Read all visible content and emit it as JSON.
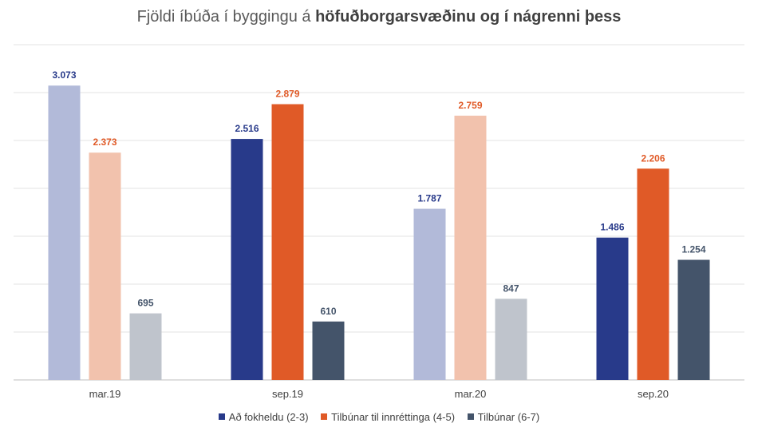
{
  "title": {
    "part1": "Fjöldi íbúða í byggingu á ",
    "part2": "höfuðborgarsvæðinu og í nágrenni þess"
  },
  "colors": {
    "series1": "#283a8a",
    "series2": "#e05a27",
    "series3": "#44546a",
    "series1_faded": "#b2bad9",
    "series2_faded": "#f2c2ad",
    "series3_faded": "#bfc4cc",
    "gridline": "#e3e3e3",
    "axis": "#bfbfbf"
  },
  "chart_data": {
    "type": "bar",
    "title": "Fjöldi íbúða í byggingu á höfuðborgarsvæðinu og í nágrenni þess",
    "categories": [
      "mar.19",
      "sep.19",
      "mar.20",
      "sep.20"
    ],
    "faded_categories": [
      true,
      false,
      true,
      false
    ],
    "ylim": [
      0,
      3500
    ],
    "grid": true,
    "legend": "bottom",
    "series": [
      {
        "name": "Að fokheldu (2-3)",
        "values": [
          3073,
          2516,
          1787,
          1486
        ],
        "labels": [
          "3.073",
          "2.516",
          "1.787",
          "1.486"
        ]
      },
      {
        "name": "Tilbúnar til innréttinga (4-5)",
        "values": [
          2373,
          2879,
          2759,
          2206
        ],
        "labels": [
          "2.373",
          "2.879",
          "2.759",
          "2.206"
        ]
      },
      {
        "name": "Tilbúnar (6-7)",
        "values": [
          695,
          610,
          847,
          1254
        ],
        "labels": [
          "695",
          "610",
          "847",
          "1.254"
        ]
      }
    ]
  }
}
